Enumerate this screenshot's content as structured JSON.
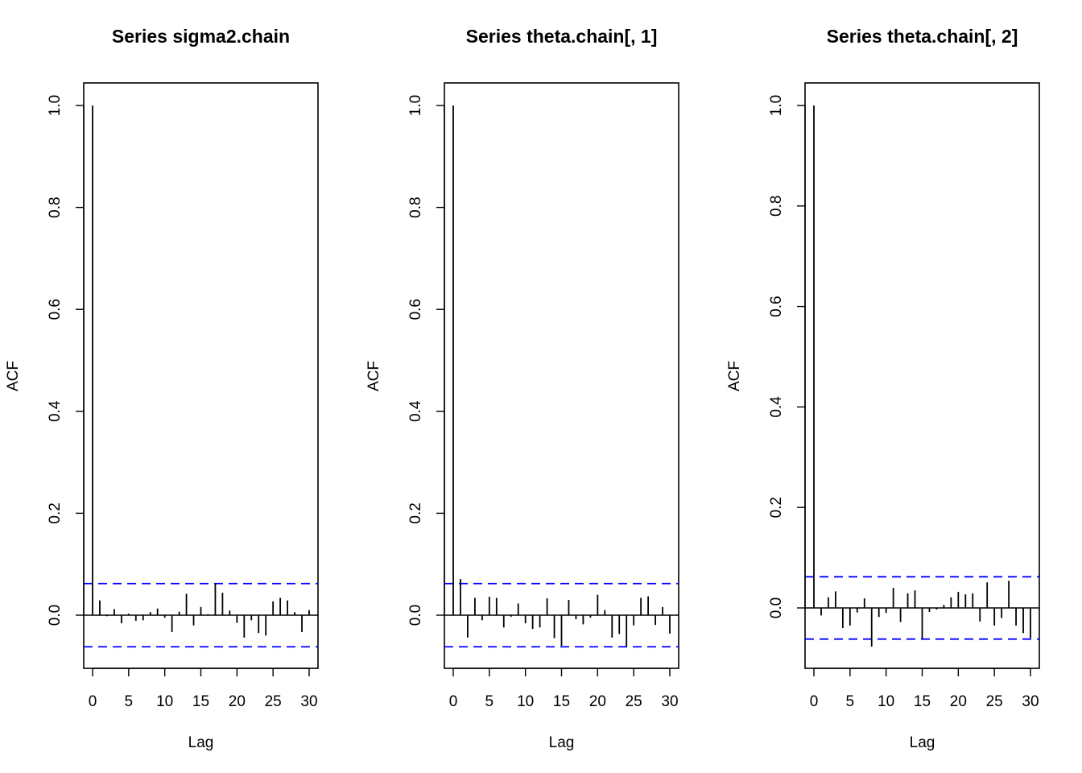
{
  "chart_data": [
    {
      "type": "bar",
      "title": "Series  sigma2.chain",
      "xlabel": "Lag",
      "ylabel": "ACF",
      "xlim": [
        0,
        30
      ],
      "ylim": [
        -0.1,
        1.0
      ],
      "x_ticks": [
        0,
        5,
        10,
        15,
        20,
        25,
        30
      ],
      "y_ticks": [
        0.0,
        0.2,
        0.4,
        0.6,
        0.8,
        1.0
      ],
      "y_tick_labels": [
        "0.0",
        "0.2",
        "0.4",
        "0.6",
        "0.8",
        "1.0"
      ],
      "confidence_band": 0.062,
      "band_color": "#0000ff",
      "lag": [
        0,
        1,
        2,
        3,
        4,
        5,
        6,
        7,
        8,
        9,
        10,
        11,
        12,
        13,
        14,
        15,
        16,
        17,
        18,
        19,
        20,
        21,
        22,
        23,
        24,
        25,
        26,
        27,
        28,
        29,
        30
      ],
      "values": [
        1.0,
        0.029,
        -0.002,
        0.012,
        -0.016,
        0.003,
        -0.011,
        -0.01,
        0.006,
        0.013,
        -0.005,
        -0.033,
        0.007,
        0.042,
        -0.02,
        0.016,
        0.002,
        0.062,
        0.044,
        0.009,
        -0.015,
        -0.044,
        -0.01,
        -0.035,
        -0.04,
        0.027,
        0.034,
        0.029,
        0.006,
        -0.033,
        0.01
      ]
    },
    {
      "type": "bar",
      "title": "Series  theta.chain[, 1]",
      "xlabel": "Lag",
      "ylabel": "ACF",
      "xlim": [
        0,
        30
      ],
      "ylim": [
        -0.1,
        1.0
      ],
      "x_ticks": [
        0,
        5,
        10,
        15,
        20,
        25,
        30
      ],
      "y_ticks": [
        0.0,
        0.2,
        0.4,
        0.6,
        0.8,
        1.0
      ],
      "y_tick_labels": [
        "0.0",
        "0.2",
        "0.4",
        "0.6",
        "0.8",
        "1.0"
      ],
      "confidence_band": 0.062,
      "band_color": "#0000ff",
      "lag": [
        0,
        1,
        2,
        3,
        4,
        5,
        6,
        7,
        8,
        9,
        10,
        11,
        12,
        13,
        14,
        15,
        16,
        17,
        18,
        19,
        20,
        21,
        22,
        23,
        24,
        25,
        26,
        27,
        28,
        29,
        30
      ],
      "values": [
        1.0,
        0.071,
        -0.044,
        0.034,
        -0.01,
        0.036,
        0.034,
        -0.024,
        -0.003,
        0.023,
        -0.016,
        -0.027,
        -0.024,
        0.033,
        -0.045,
        -0.06,
        0.03,
        -0.008,
        -0.018,
        -0.005,
        0.04,
        0.01,
        -0.044,
        -0.037,
        -0.061,
        -0.02,
        0.034,
        0.037,
        -0.019,
        0.016,
        -0.036
      ]
    },
    {
      "type": "bar",
      "title": "Series  theta.chain[, 2]",
      "xlabel": "Lag",
      "ylabel": "ACF",
      "xlim": [
        0,
        30
      ],
      "ylim": [
        -0.12,
        1.0
      ],
      "x_ticks": [
        0,
        5,
        10,
        15,
        20,
        25,
        30
      ],
      "y_ticks": [
        0.0,
        0.2,
        0.4,
        0.6,
        0.8,
        1.0
      ],
      "y_tick_labels": [
        "0.0",
        "0.2",
        "0.4",
        "0.6",
        "0.8",
        "1.0"
      ],
      "confidence_band": 0.062,
      "band_color": "#0000ff",
      "lag": [
        0,
        1,
        2,
        3,
        4,
        5,
        6,
        7,
        8,
        9,
        10,
        11,
        12,
        13,
        14,
        15,
        16,
        17,
        18,
        19,
        20,
        21,
        22,
        23,
        24,
        25,
        26,
        27,
        28,
        29,
        30
      ],
      "values": [
        1.0,
        -0.015,
        0.021,
        0.033,
        -0.04,
        -0.035,
        -0.009,
        0.019,
        -0.077,
        -0.018,
        -0.01,
        0.04,
        -0.028,
        0.029,
        0.035,
        -0.062,
        -0.008,
        -0.003,
        0.006,
        0.021,
        0.032,
        0.027,
        0.029,
        -0.027,
        0.051,
        -0.035,
        -0.02,
        0.054,
        -0.035,
        -0.05,
        -0.06
      ]
    }
  ]
}
